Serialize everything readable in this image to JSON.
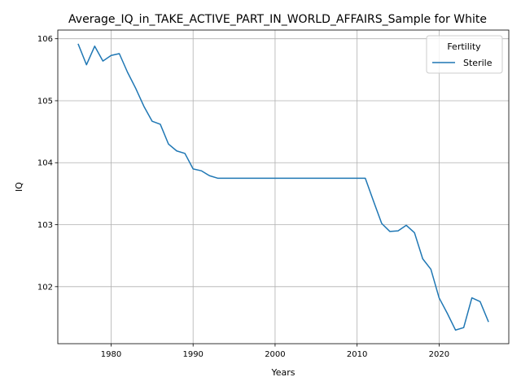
{
  "chart_data": {
    "type": "line",
    "title": "Average_IQ_in_TAKE_ACTIVE_PART_IN_WORLD_AFFAIRS_Sample for White",
    "xlabel": "Years",
    "ylabel": "IQ",
    "xlim": [
      1973.5,
      2028.5
    ],
    "ylim": [
      101.08,
      106.14
    ],
    "xticks": [
      1980,
      1990,
      2000,
      2010,
      2020
    ],
    "yticks": [
      102,
      103,
      104,
      105,
      106
    ],
    "grid": true,
    "legend": {
      "title": "Fertility",
      "placement": "upper right"
    },
    "series": [
      {
        "name": "Sterile",
        "color": "#1f77b4",
        "x": [
          1976,
          1977,
          1978,
          1979,
          1980,
          1981,
          1982,
          1983,
          1984,
          1985,
          1986,
          1987,
          1988,
          1989,
          1990,
          1991,
          1992,
          1993,
          1994,
          1995,
          1996,
          1997,
          1998,
          1999,
          2000,
          2001,
          2002,
          2003,
          2004,
          2005,
          2006,
          2007,
          2008,
          2009,
          2010,
          2011,
          2012,
          2013,
          2014,
          2015,
          2016,
          2017,
          2018,
          2019,
          2020,
          2021,
          2022,
          2023,
          2024,
          2025,
          2026
        ],
        "y": [
          105.91,
          105.58,
          105.88,
          105.64,
          105.73,
          105.76,
          105.46,
          105.2,
          104.91,
          104.67,
          104.62,
          104.3,
          104.19,
          104.15,
          103.9,
          103.87,
          103.79,
          103.75,
          103.75,
          103.75,
          103.75,
          103.75,
          103.75,
          103.75,
          103.75,
          103.75,
          103.75,
          103.75,
          103.75,
          103.75,
          103.75,
          103.75,
          103.75,
          103.75,
          103.75,
          103.75,
          103.38,
          103.02,
          102.89,
          102.9,
          102.99,
          102.87,
          102.45,
          102.28,
          101.82,
          101.57,
          101.3,
          101.34,
          101.82,
          101.76,
          101.44
        ]
      }
    ]
  }
}
